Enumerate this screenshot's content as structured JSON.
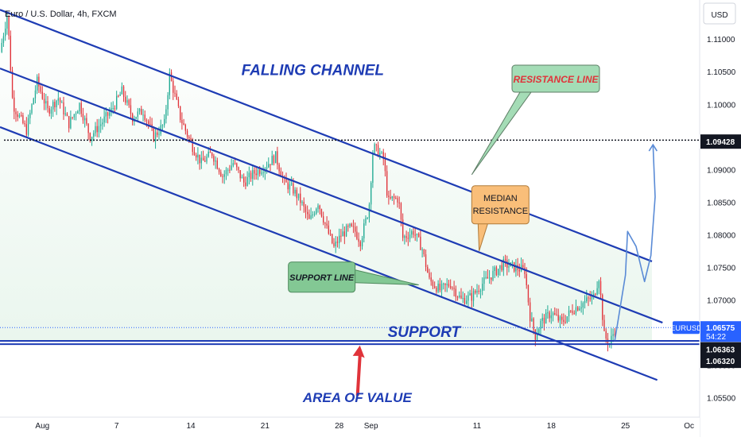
{
  "chart_data": {
    "type": "candlestick",
    "title": "Euro / U.S. Dollar, 4h, FXCM",
    "currency": "USD",
    "symbol": "EURUSD",
    "ylim": [
      1.052,
      1.116
    ],
    "y_ticks": [
      1.055,
      1.06,
      1.065,
      1.07,
      1.075,
      1.08,
      1.085,
      1.09,
      1.095,
      1.1,
      1.105,
      1.11
    ],
    "y_tick_labels": [
      "1.05500",
      "1.06000",
      "1.06500",
      "1.07000",
      "1.07500",
      "1.08000",
      "1.08500",
      "1.09000",
      "1.09500",
      "1.10000",
      "1.10500",
      "1.11000"
    ],
    "x_ticks": [
      {
        "label": "Aug",
        "day": 0
      },
      {
        "label": "7",
        "day": 7
      },
      {
        "label": "14",
        "day": 14
      },
      {
        "label": "21",
        "day": 21
      },
      {
        "label": "28",
        "day": 28
      },
      {
        "label": "Sep",
        "day": 31
      },
      {
        "label": "11",
        "day": 41
      },
      {
        "label": "18",
        "day": 48
      },
      {
        "label": "25",
        "day": 55
      },
      {
        "label": "Oc",
        "day": 61
      }
    ],
    "xlim_days": [
      -4,
      62
    ],
    "price_badges": [
      {
        "label": "1.09428",
        "value": 1.09428,
        "style": "dark"
      },
      {
        "label": "1.06575",
        "value": 1.06575,
        "style": "blue",
        "tag": "EURUSD",
        "countdown": "54:22"
      },
      {
        "label": "1.06363",
        "value": 1.06363,
        "style": "dark"
      },
      {
        "label": "1.06320",
        "value": 1.0632,
        "style": "dark"
      }
    ],
    "path_points": [
      [
        -4,
        1.108
      ],
      [
        -3.3,
        1.114
      ],
      [
        -2.8,
        1.1
      ],
      [
        -1.5,
        1.096
      ],
      [
        -0.5,
        1.1035
      ],
      [
        0.5,
        1.099
      ],
      [
        1.5,
        1.101
      ],
      [
        2.5,
        1.097
      ],
      [
        3.5,
        1.1
      ],
      [
        4.5,
        1.095
      ],
      [
        5.5,
        1.097
      ],
      [
        6.5,
        1.099
      ],
      [
        7.5,
        1.102
      ],
      [
        8.5,
        1.098
      ],
      [
        9.5,
        1.099
      ],
      [
        10.5,
        1.095
      ],
      [
        11.5,
        1.097
      ],
      [
        12,
        1.1045
      ],
      [
        13,
        1.098
      ],
      [
        14,
        1.094
      ],
      [
        15,
        1.091
      ],
      [
        16,
        1.0925
      ],
      [
        17,
        1.089
      ],
      [
        18,
        1.091
      ],
      [
        19,
        1.088
      ],
      [
        20,
        1.0895
      ],
      [
        21,
        1.0905
      ],
      [
        22,
        1.092
      ],
      [
        22.8,
        1.088
      ],
      [
        23.6,
        1.087
      ],
      [
        24.4,
        1.085
      ],
      [
        25.2,
        1.082
      ],
      [
        26,
        1.085
      ],
      [
        26.8,
        1.081
      ],
      [
        27.5,
        1.078
      ],
      [
        28.2,
        1.08
      ],
      [
        29,
        1.081
      ],
      [
        29.5,
        1.0805
      ],
      [
        30,
        1.079
      ],
      [
        30.8,
        1.084
      ],
      [
        31.2,
        1.0935
      ],
      [
        31.8,
        1.0925
      ],
      [
        32.2,
        1.0915
      ],
      [
        32.6,
        1.085
      ],
      [
        33,
        1.0855
      ],
      [
        33.6,
        1.0855
      ],
      [
        34,
        1.0795
      ],
      [
        35,
        1.0805
      ],
      [
        35.8,
        1.078
      ],
      [
        36.5,
        1.073
      ],
      [
        37.5,
        1.0715
      ],
      [
        38.5,
        1.0725
      ],
      [
        39.5,
        1.07
      ],
      [
        40.5,
        1.0705
      ],
      [
        41.5,
        1.0725
      ],
      [
        42.5,
        1.074
      ],
      [
        43.5,
        1.0755
      ],
      [
        44.5,
        1.075
      ],
      [
        45.5,
        1.0745
      ],
      [
        46,
        1.0675
      ],
      [
        46.5,
        1.0645
      ],
      [
        47,
        1.0665
      ],
      [
        48,
        1.068
      ],
      [
        49,
        1.0665
      ],
      [
        50,
        1.0685
      ],
      [
        51,
        1.0695
      ],
      [
        52,
        1.0705
      ],
      [
        52.5,
        1.0735
      ],
      [
        53,
        1.0645
      ],
      [
        53.5,
        1.0633
      ],
      [
        54,
        1.0655
      ]
    ],
    "channel": {
      "upper": [
        [
          -4,
          1.1145
        ],
        [
          57.5,
          1.0759
        ]
      ],
      "median": [
        [
          -4,
          1.1055
        ],
        [
          58.5,
          1.0665
        ]
      ],
      "lower": [
        [
          -4,
          1.0965
        ],
        [
          58,
          1.0577
        ]
      ],
      "horizontal_dotted": 1.0945,
      "support_band": [
        1.0632,
        1.0637
      ],
      "label_color": "#1E3CB4"
    },
    "forecast_points": [
      [
        54,
        1.0638
      ],
      [
        55,
        1.0738
      ],
      [
        55.2,
        1.0805
      ],
      [
        56,
        1.0782
      ],
      [
        56.8,
        1.0728
      ],
      [
        57.4,
        1.0768
      ],
      [
        57.8,
        1.0858
      ],
      [
        57.6,
        1.0938
      ]
    ],
    "annotations": {
      "falling_channel": "FALLING CHANNEL",
      "resistance_line": "RESISTANCE LINE",
      "median_resistance": [
        "MEDIAN",
        "RESISTANCE"
      ],
      "support_line": "SUPPORT LINE",
      "support": "SUPPORT",
      "area_of_value": "AREA OF VALUE"
    },
    "colors": {
      "bull": "#22AB94",
      "bear": "#E0333A",
      "channel": "#1E3CB4",
      "resistance_box": "#A4DCB6",
      "resistance_text": "#E0333A",
      "median_box": "#F9BE79",
      "support_box": "#83C894",
      "arrow": "#E0333A",
      "forecast": "#5A8BD6",
      "zone_top": "#FFFFFF",
      "zone_bottom": "#EAF6EE",
      "badge_dark": "#131722",
      "badge_blue": "#2962FF"
    }
  }
}
